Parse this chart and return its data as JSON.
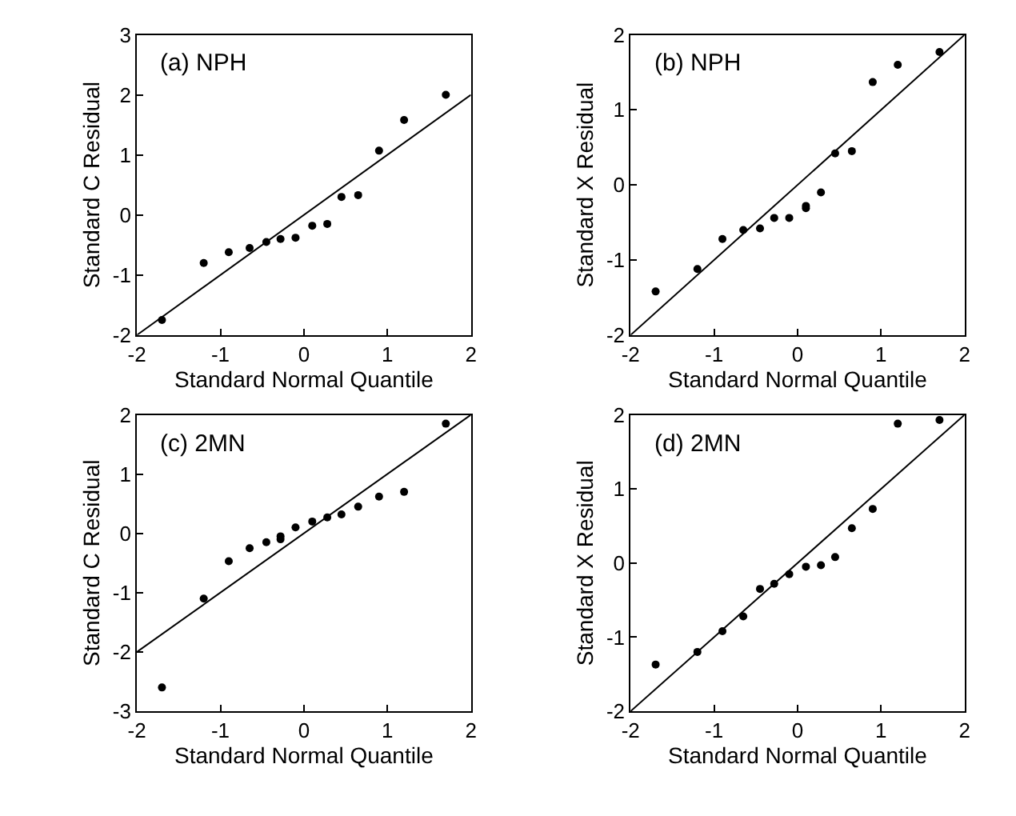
{
  "chart_data": [
    {
      "type": "scatter",
      "title": "(a) NPH",
      "xlabel": "Standard Normal Quantile",
      "ylabel": "Standard C Residual",
      "xlim": [
        -2,
        2
      ],
      "ylim": [
        -2,
        3
      ],
      "xticks": [
        -2,
        -1,
        0,
        1,
        2
      ],
      "yticks": [
        -2,
        -1,
        0,
        1,
        2,
        3
      ],
      "series": [
        {
          "marker": "circle",
          "color": "#000000",
          "x": [
            -1.7,
            -1.2,
            -0.9,
            -0.65,
            -0.45,
            -0.28,
            -0.1,
            0.1,
            0.28,
            0.45,
            0.65,
            0.9,
            1.2,
            1.7
          ],
          "values": [
            -1.75,
            -0.8,
            -0.62,
            -0.55,
            -0.45,
            -0.4,
            -0.38,
            -0.18,
            -0.15,
            0.3,
            0.33,
            1.07,
            1.58,
            2.0
          ]
        },
        {
          "type": "line",
          "marker": "none",
          "color": "#000000",
          "x": [
            -2,
            2
          ],
          "values": [
            -2,
            2
          ]
        }
      ]
    },
    {
      "type": "scatter",
      "title": "(b) NPH",
      "xlabel": "Standard Normal Quantile",
      "ylabel": "Standard X Residual",
      "xlim": [
        -2,
        2
      ],
      "ylim": [
        -2,
        2
      ],
      "xticks": [
        -2,
        -1,
        0,
        1,
        2
      ],
      "yticks": [
        -2,
        -1,
        0,
        1,
        2
      ],
      "series": [
        {
          "marker": "circle",
          "color": "#000000",
          "x": [
            -1.7,
            -1.2,
            -0.9,
            -0.65,
            -0.45,
            -0.28,
            -0.1,
            0.1,
            0.1,
            0.28,
            0.45,
            0.65,
            0.9,
            1.2,
            1.7
          ],
          "values": [
            -1.42,
            -1.12,
            -0.72,
            -0.6,
            -0.58,
            -0.44,
            -0.44,
            -0.28,
            -0.31,
            -0.1,
            0.42,
            0.45,
            1.37,
            1.6,
            1.77
          ]
        },
        {
          "type": "line",
          "marker": "none",
          "color": "#000000",
          "x": [
            -2,
            2
          ],
          "values": [
            -2,
            2
          ]
        }
      ]
    },
    {
      "type": "scatter",
      "title": "(c) 2MN",
      "xlabel": "Standard Normal Quantile",
      "ylabel": "Standard C Residual",
      "xlim": [
        -2,
        2
      ],
      "ylim": [
        -3,
        2
      ],
      "xticks": [
        -2,
        -1,
        0,
        1,
        2
      ],
      "yticks": [
        -3,
        -2,
        -1,
        0,
        1,
        2
      ],
      "series": [
        {
          "marker": "circle",
          "color": "#000000",
          "x": [
            -1.7,
            -1.2,
            -0.9,
            -0.65,
            -0.45,
            -0.28,
            -0.28,
            -0.1,
            0.1,
            0.28,
            0.45,
            0.65,
            0.9,
            1.2,
            1.7
          ],
          "values": [
            -2.6,
            -1.1,
            -0.47,
            -0.25,
            -0.15,
            -0.05,
            -0.1,
            0.1,
            0.2,
            0.27,
            0.32,
            0.45,
            0.62,
            0.7,
            1.85
          ]
        },
        {
          "type": "line",
          "marker": "none",
          "color": "#000000",
          "x": [
            -2,
            2
          ],
          "values": [
            -2,
            2
          ]
        }
      ]
    },
    {
      "type": "scatter",
      "title": "(d) 2MN",
      "xlabel": "Standard Normal Quantile",
      "ylabel": "Standard X Residual",
      "xlim": [
        -2,
        2
      ],
      "ylim": [
        -2,
        2
      ],
      "xticks": [
        -2,
        -1,
        0,
        1,
        2
      ],
      "yticks": [
        -2,
        -1,
        0,
        1,
        2
      ],
      "series": [
        {
          "marker": "circle",
          "color": "#000000",
          "x": [
            -1.7,
            -1.2,
            -0.9,
            -0.65,
            -0.45,
            -0.28,
            -0.1,
            0.1,
            0.28,
            0.45,
            0.65,
            0.9,
            1.2,
            1.7
          ],
          "values": [
            -1.37,
            -1.2,
            -0.92,
            -0.72,
            -0.35,
            -0.28,
            -0.15,
            -0.05,
            -0.03,
            0.08,
            0.47,
            0.73,
            1.88,
            1.93
          ]
        },
        {
          "type": "line",
          "marker": "none",
          "color": "#000000",
          "x": [
            -2,
            2
          ],
          "values": [
            -2,
            2
          ]
        }
      ]
    }
  ]
}
